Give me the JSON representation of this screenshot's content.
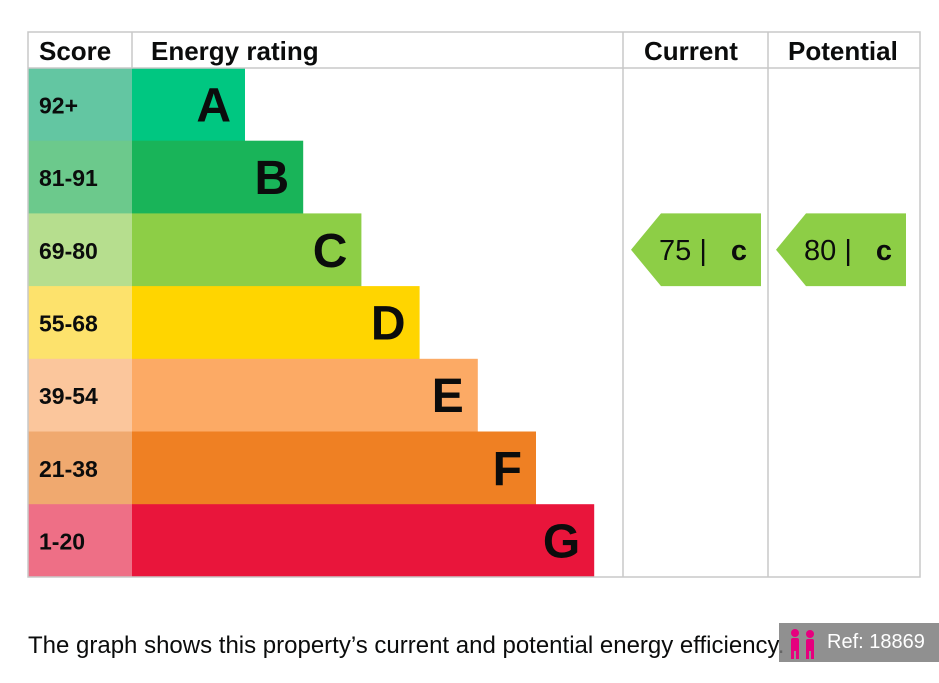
{
  "chart_data": {
    "type": "table",
    "headers": {
      "score": "Score",
      "rating": "Energy rating",
      "current": "Current",
      "potential": "Potential"
    },
    "bands": [
      {
        "score": "92+",
        "letter": "A",
        "color": "#00c781",
        "score_color": "#63c6a2"
      },
      {
        "score": "81-91",
        "letter": "B",
        "color": "#19b459",
        "score_color": "#6cc98c"
      },
      {
        "score": "69-80",
        "letter": "C",
        "color": "#8dce46",
        "score_color": "#b6de8e"
      },
      {
        "score": "55-68",
        "letter": "D",
        "color": "#ffd500",
        "score_color": "#fde26c"
      },
      {
        "score": "39-54",
        "letter": "E",
        "color": "#fcaa65",
        "score_color": "#fbc69c"
      },
      {
        "score": "21-38",
        "letter": "F",
        "color": "#ef8023",
        "score_color": "#f0a96f"
      },
      {
        "score": "1-20",
        "letter": "G",
        "color": "#e9153b",
        "score_color": "#ee6f86"
      }
    ],
    "current": {
      "value": 75,
      "value_text": "75 |",
      "band": "C",
      "color": "#8dce46"
    },
    "potential": {
      "value": 80,
      "value_text": "80 |",
      "band": "C",
      "color": "#8dce46"
    }
  },
  "caption": "The graph shows this property’s current and potential energy efficiency.",
  "reference": {
    "label": "Ref: 18869",
    "icon": "people-icon"
  }
}
